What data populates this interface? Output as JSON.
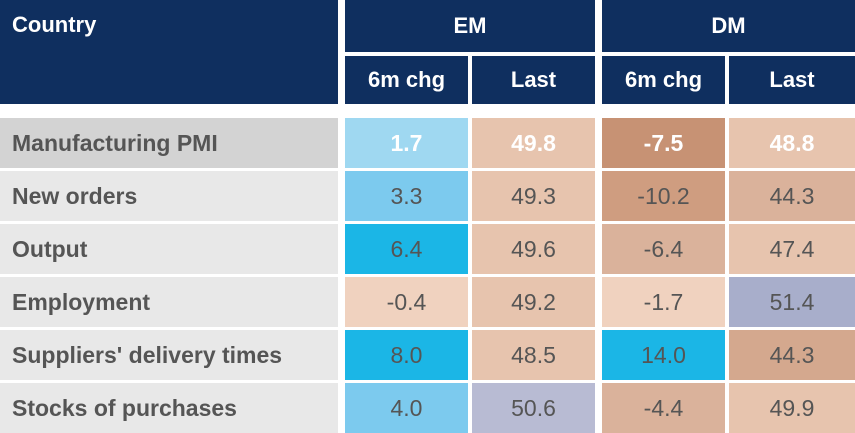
{
  "header": {
    "country": "Country",
    "groups": [
      "EM",
      "DM"
    ],
    "subheaders": [
      "6m chg",
      "Last",
      "6m chg",
      "Last"
    ]
  },
  "rows": [
    {
      "label": "Manufacturing PMI",
      "values": [
        "1.7",
        "49.8",
        "-7.5",
        "48.8"
      ]
    },
    {
      "label": "New orders",
      "values": [
        "3.3",
        "49.3",
        "-10.2",
        "44.3"
      ]
    },
    {
      "label": "Output",
      "values": [
        "6.4",
        "49.6",
        "-6.4",
        "47.4"
      ]
    },
    {
      "label": "Employment",
      "values": [
        "-0.4",
        "49.2",
        "-1.7",
        "51.4"
      ]
    },
    {
      "label": "Suppliers' delivery times",
      "values": [
        "8.0",
        "48.5",
        "14.0",
        "44.3"
      ]
    },
    {
      "label": "Stocks of purchases",
      "values": [
        "4.0",
        "50.6",
        "-4.4",
        "49.9"
      ]
    }
  ]
}
